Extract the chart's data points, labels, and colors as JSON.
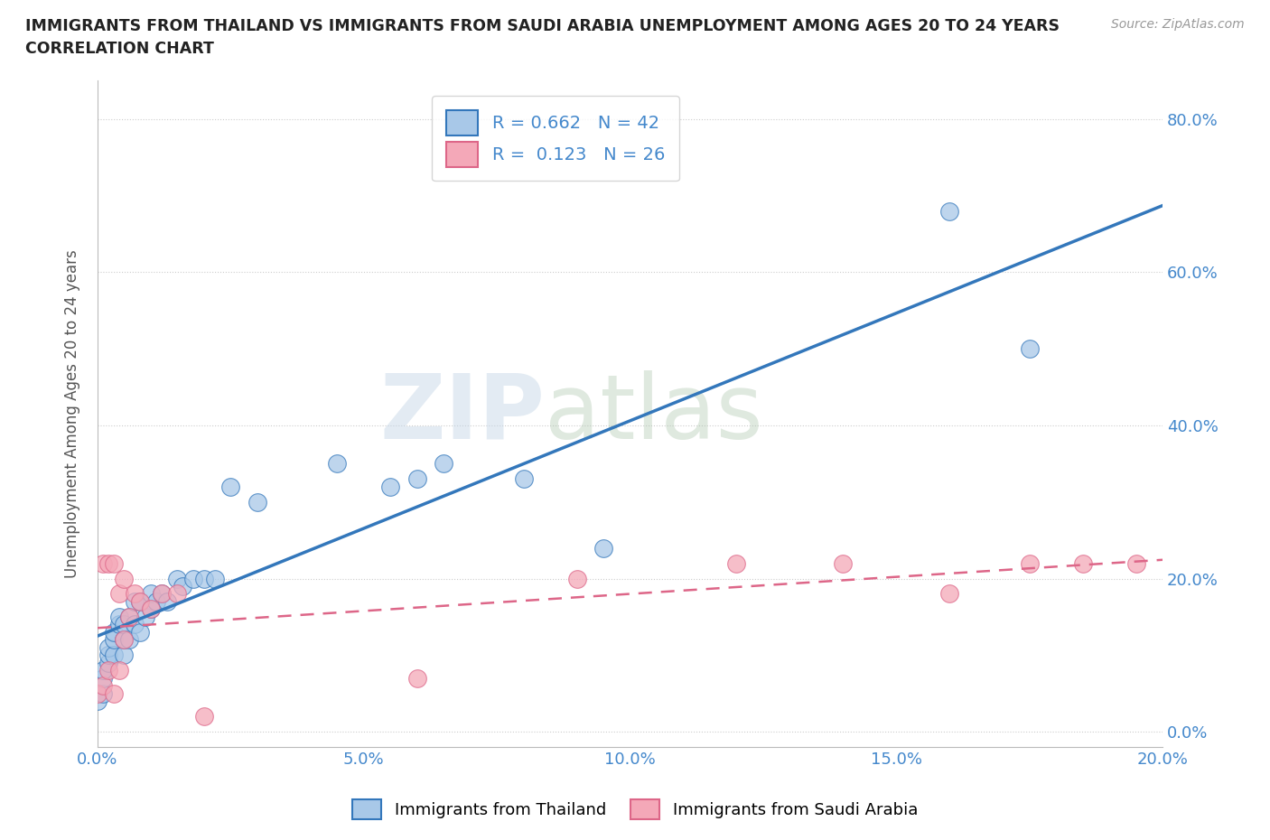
{
  "title_line1": "IMMIGRANTS FROM THAILAND VS IMMIGRANTS FROM SAUDI ARABIA UNEMPLOYMENT AMONG AGES 20 TO 24 YEARS",
  "title_line2": "CORRELATION CHART",
  "source_text": "Source: ZipAtlas.com",
  "xlabel_ticks": [
    "0.0%",
    "",
    "5.0%",
    "",
    "10.0%",
    "",
    "15.0%",
    "",
    "20.0%"
  ],
  "ylabel_right_ticks": [
    "0.0%",
    "20.0%",
    "40.0%",
    "60.0%",
    "80.0%"
  ],
  "xlim": [
    0.0,
    0.2
  ],
  "ylim": [
    -0.02,
    0.85
  ],
  "thailand_x": [
    0.0,
    0.001,
    0.001,
    0.001,
    0.002,
    0.002,
    0.002,
    0.003,
    0.003,
    0.003,
    0.004,
    0.004,
    0.005,
    0.005,
    0.005,
    0.006,
    0.006,
    0.007,
    0.007,
    0.008,
    0.008,
    0.009,
    0.01,
    0.01,
    0.011,
    0.012,
    0.013,
    0.015,
    0.016,
    0.018,
    0.02,
    0.022,
    0.025,
    0.03,
    0.045,
    0.055,
    0.06,
    0.065,
    0.08,
    0.095,
    0.16,
    0.175
  ],
  "thailand_y": [
    0.04,
    0.05,
    0.07,
    0.08,
    0.09,
    0.1,
    0.11,
    0.1,
    0.12,
    0.13,
    0.14,
    0.15,
    0.1,
    0.12,
    0.14,
    0.12,
    0.15,
    0.14,
    0.17,
    0.13,
    0.17,
    0.15,
    0.16,
    0.18,
    0.17,
    0.18,
    0.17,
    0.2,
    0.19,
    0.2,
    0.2,
    0.2,
    0.32,
    0.3,
    0.35,
    0.32,
    0.33,
    0.35,
    0.33,
    0.24,
    0.68,
    0.5
  ],
  "saudi_x": [
    0.0,
    0.001,
    0.001,
    0.002,
    0.002,
    0.003,
    0.003,
    0.004,
    0.004,
    0.005,
    0.005,
    0.006,
    0.007,
    0.008,
    0.01,
    0.012,
    0.015,
    0.02,
    0.06,
    0.09,
    0.12,
    0.14,
    0.16,
    0.175,
    0.185,
    0.195
  ],
  "saudi_y": [
    0.05,
    0.06,
    0.22,
    0.08,
    0.22,
    0.05,
    0.22,
    0.08,
    0.18,
    0.12,
    0.2,
    0.15,
    0.18,
    0.17,
    0.16,
    0.18,
    0.18,
    0.02,
    0.07,
    0.2,
    0.22,
    0.22,
    0.18,
    0.22,
    0.22,
    0.22
  ],
  "thailand_color": "#a8c8e8",
  "saudi_color": "#f4a8b8",
  "thailand_line_color": "#3377bb",
  "saudi_line_color": "#dd6688",
  "thailand_R": "0.662",
  "thailand_N": "42",
  "saudi_R": "0.123",
  "saudi_N": "26",
  "watermark_zip": "ZIP",
  "watermark_atlas": "atlas",
  "legend_label_thailand": "Immigrants from Thailand",
  "legend_label_saudi": "Immigrants from Saudi Arabia",
  "background_color": "#ffffff",
  "grid_color": "#cccccc",
  "title_color": "#222222",
  "axis_tick_color": "#4488cc",
  "ylabel": "Unemployment Among Ages 20 to 24 years"
}
